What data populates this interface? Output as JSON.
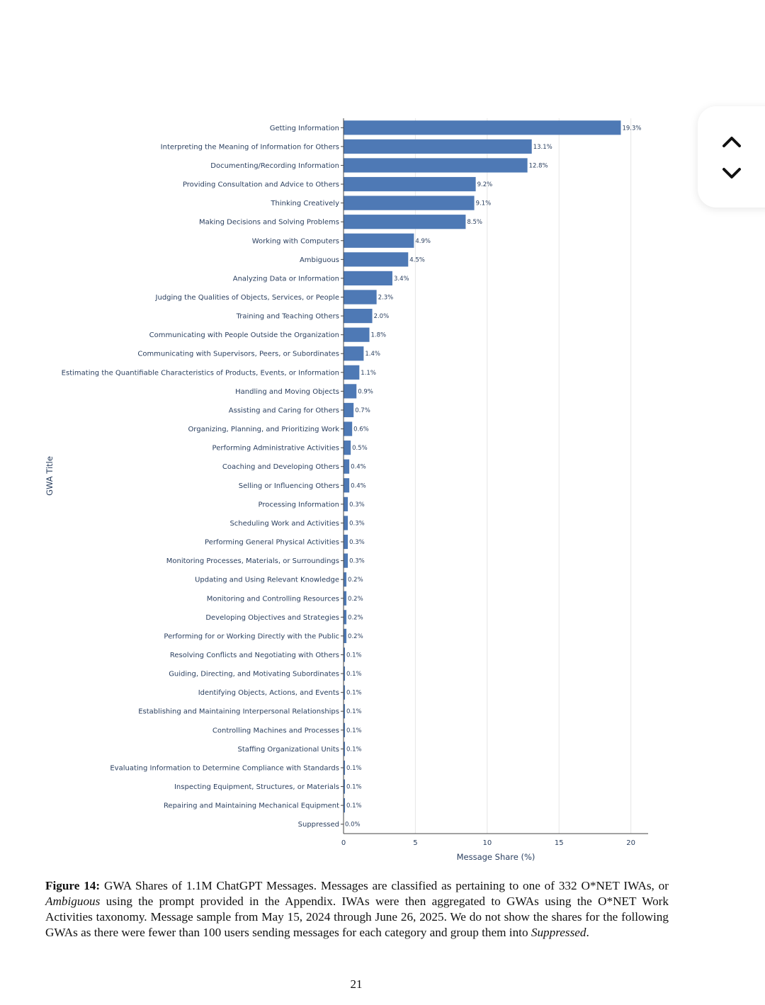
{
  "chart_data": {
    "type": "bar",
    "orientation": "horizontal",
    "ylabel": "GWA Title",
    "xlabel": "Message Share (%)",
    "xlim": [
      0,
      21.2
    ],
    "xticks": [
      0,
      5,
      10,
      15,
      20
    ],
    "xtick_labels": [
      "0",
      "5",
      "10",
      "15",
      "20"
    ],
    "grid": true,
    "bar_color": "#4e79b5",
    "categories": [
      "Getting Information",
      "Interpreting the Meaning of Information for Others",
      "Documenting/Recording Information",
      "Providing Consultation and Advice to Others",
      "Thinking Creatively",
      "Making Decisions and Solving Problems",
      "Working with Computers",
      "Ambiguous",
      "Analyzing Data or Information",
      "Judging the Qualities of Objects, Services, or People",
      "Training and Teaching Others",
      "Communicating with People Outside the Organization",
      "Communicating with Supervisors, Peers, or Subordinates",
      "Estimating the Quantifiable Characteristics of Products, Events, or Information",
      "Handling and Moving Objects",
      "Assisting and Caring for Others",
      "Organizing, Planning, and Prioritizing Work",
      "Performing Administrative Activities",
      "Coaching and Developing Others",
      "Selling or Influencing Others",
      "Processing Information",
      "Scheduling Work and Activities",
      "Performing General Physical Activities",
      "Monitoring Processes, Materials, or Surroundings",
      "Updating and Using Relevant Knowledge",
      "Monitoring and Controlling Resources",
      "Developing Objectives and Strategies",
      "Performing for or Working Directly with the Public",
      "Resolving Conflicts and Negotiating with Others",
      "Guiding, Directing, and Motivating Subordinates",
      "Identifying Objects, Actions, and Events",
      "Establishing and Maintaining Interpersonal Relationships",
      "Controlling Machines and Processes",
      "Staffing Organizational Units",
      "Evaluating Information to Determine Compliance with Standards",
      "Inspecting Equipment, Structures, or Materials",
      "Repairing and Maintaining Mechanical Equipment",
      "Suppressed"
    ],
    "values": [
      19.3,
      13.1,
      12.8,
      9.2,
      9.1,
      8.5,
      4.9,
      4.5,
      3.4,
      2.3,
      2.0,
      1.8,
      1.4,
      1.1,
      0.9,
      0.7,
      0.6,
      0.5,
      0.4,
      0.4,
      0.3,
      0.3,
      0.3,
      0.3,
      0.2,
      0.2,
      0.2,
      0.2,
      0.1,
      0.1,
      0.1,
      0.1,
      0.1,
      0.1,
      0.1,
      0.1,
      0.1,
      0.0
    ],
    "value_labels": [
      "19.3%",
      "13.1%",
      "12.8%",
      "9.2%",
      "9.1%",
      "8.5%",
      "4.9%",
      "4.5%",
      "3.4%",
      "2.3%",
      "2.0%",
      "1.8%",
      "1.4%",
      "1.1%",
      "0.9%",
      "0.7%",
      "0.6%",
      "0.5%",
      "0.4%",
      "0.4%",
      "0.3%",
      "0.3%",
      "0.3%",
      "0.3%",
      "0.2%",
      "0.2%",
      "0.2%",
      "0.2%",
      "0.1%",
      "0.1%",
      "0.1%",
      "0.1%",
      "0.1%",
      "0.1%",
      "0.1%",
      "0.1%",
      "0.1%",
      "0.0%"
    ]
  },
  "caption": {
    "figure_label": "Figure 14:",
    "text_1": " GWA Shares of 1.1M ChatGPT Messages. Messages are classified as pertaining to one of 332 O*NET IWAs, or ",
    "italic_1": "Ambiguous",
    "text_2": " using the prompt provided in the Appendix. IWAs were then aggregated to GWAs using the O*NET Work Activities taxonomy. Message sample from May 15, 2024 through June 26, 2025. We do not show the shares for the following GWAs as there were fewer than 100 users sending messages for each category and group them into ",
    "italic_2": "Suppressed",
    "text_3": "."
  },
  "page_number": "21",
  "nav": {
    "up_icon": "chevron-up-icon",
    "down_icon": "chevron-down-icon"
  }
}
